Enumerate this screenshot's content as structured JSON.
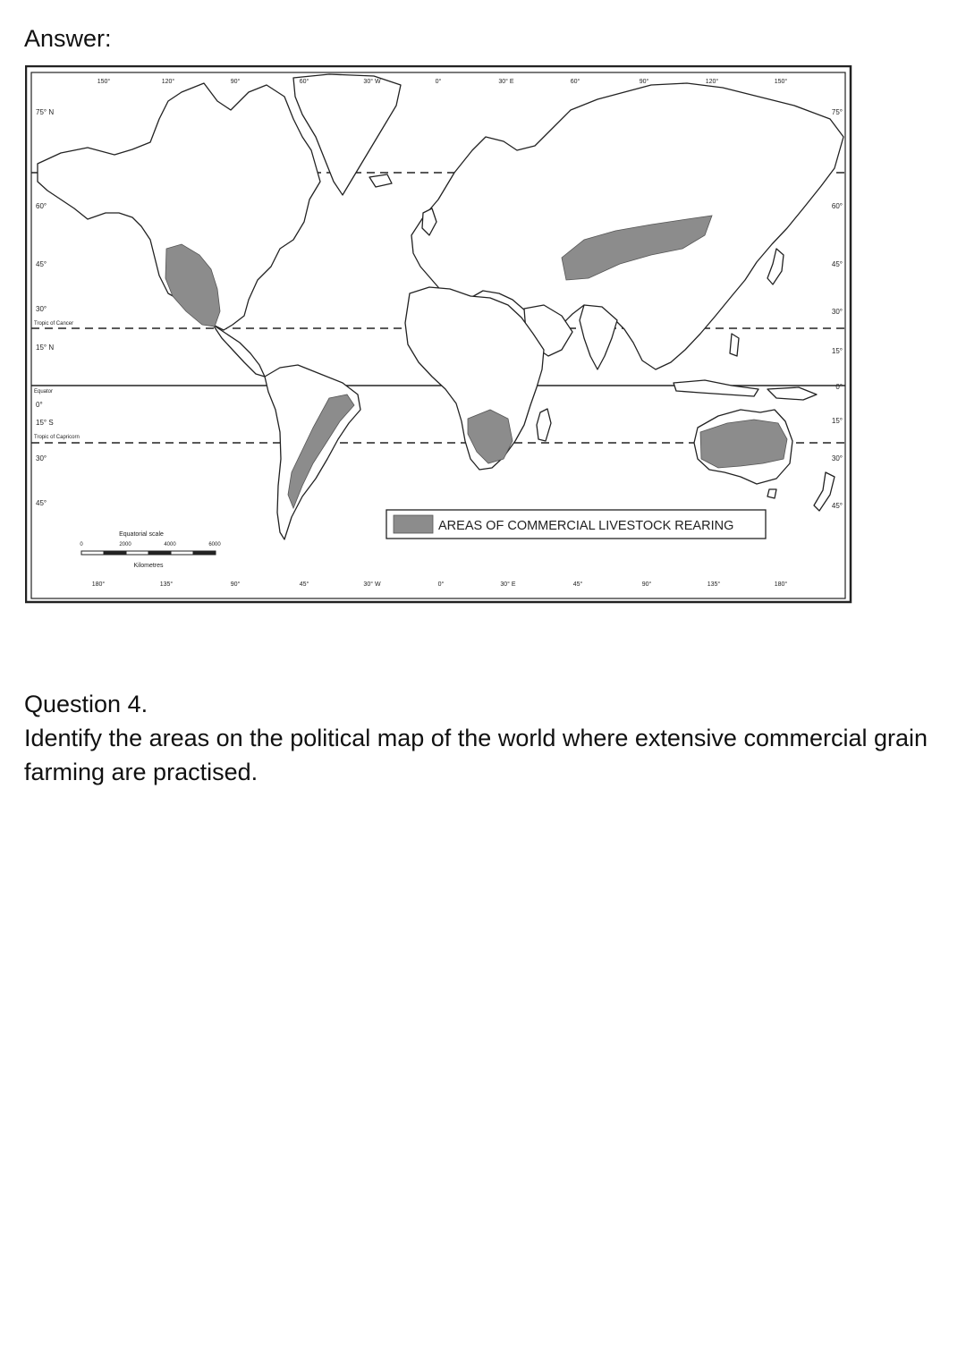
{
  "answer_heading": "Answer:",
  "map": {
    "legend_label": "AREAS OF COMMERCIAL LIVESTOCK REARING",
    "scale": {
      "title": "Equatorial scale",
      "unit": "Kilometres",
      "ticks": [
        "0",
        "2000",
        "4000",
        "6000"
      ]
    },
    "top_longitudes": [
      "150°",
      "120°",
      "90°",
      "60°",
      "30° W",
      "0°",
      "30° E",
      "60°",
      "90°",
      "120°",
      "150°"
    ],
    "bottom_longitudes": [
      "180°",
      "135°",
      "90°",
      "45°",
      "30° W",
      "0°",
      "30° E",
      "45°",
      "90°",
      "135°",
      "180°"
    ],
    "left_latitudes": [
      "75° N",
      "60°",
      "45°",
      "30°",
      "15° N",
      "0°",
      "15° S",
      "30°",
      "45°"
    ],
    "right_latitudes": [
      "75°",
      "60°",
      "45°",
      "30°",
      "15°",
      "0°",
      "15°",
      "30°",
      "45°"
    ],
    "line_labels": {
      "cancer": "Tropic of Cancer",
      "equator": "Equator",
      "capricorn": "Tropic of Capricorn"
    },
    "colors": {
      "shaded_area": "#8c8c8c",
      "outline": "#222222"
    }
  },
  "question": {
    "number": "Question 4.",
    "text": "Identify the areas on the political map of the world where extensive commercial grain farming are practised."
  }
}
